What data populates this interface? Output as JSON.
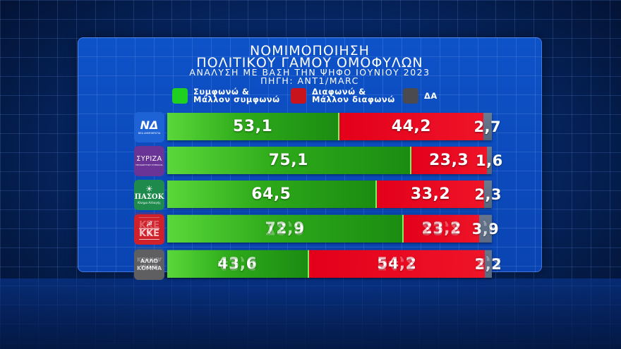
{
  "header": {
    "title_line1": "ΝΟΜΙΜΟΠΟΙΗΣΗ",
    "title_line2": "ΠΟΛΙΤΙΚΟΥ ΓΑΜΟΥ ΟΜΟΦΥΛΩΝ",
    "subtitle": "ΑΝΑΛΥΣΗ ΜΕ ΒΑΣΗ ΤΗΝ ΨΗΦΟ ΙΟΥΝΙΟΥ 2023",
    "source": "ΠΗΓΗ: ΑΝΤ1/MARC"
  },
  "legend": [
    {
      "line1": "Συμφωνώ &",
      "line2": "Μάλλον συμφωνώ",
      "color": "#1fd020"
    },
    {
      "line1": "Διαφωνώ &",
      "line2": "Μάλλον διαφωνώ",
      "color": "#c8141c"
    },
    {
      "line1": "ΔΑ",
      "line2": "",
      "color": "#4a4a4f"
    }
  ],
  "rows": [
    {
      "party": "ΝΔ",
      "logo_text": "ΝΔ",
      "logo_sub": "ΝΕΑ ΔΗΜΟΚΡΑΤΙΑ",
      "logo_color": "#1e63d6",
      "agree": "53,1",
      "disagree": "44,2",
      "na": "2,7"
    },
    {
      "party": "ΣΥΡΙΖΑ",
      "logo_text": "ΣΥΡΙΖΑ",
      "logo_sub": "ΠΡΟΟΔΕΥΤΙΚΗ ΣΥΜΜΑΧΙΑ",
      "logo_color": "#6a3396",
      "agree": "75,1",
      "disagree": "23,3",
      "na": "1,6"
    },
    {
      "party": "ΠΑΣΟΚ",
      "logo_text": "ΠΑΣΟΚ",
      "logo_sub": "Κίνημα Αλλαγής",
      "logo_color": "#1e8a4c",
      "agree": "64,5",
      "disagree": "33,2",
      "na": "2,3"
    },
    {
      "party": "ΚΚΕ",
      "logo_text": "ΚΚΕ",
      "logo_sub": "☭",
      "logo_color": "#d0202a",
      "agree": "72,9",
      "disagree": "23,2",
      "na": "3,9"
    },
    {
      "party": "ΑΛΛΟ ΚΟΜΜΑ",
      "logo_text": "ΑΛΛΟ",
      "logo_sub": "ΚΟΜΜΑ",
      "logo_color": "#5f5f62",
      "agree": "43,6",
      "disagree": "54,2",
      "na": "2,2"
    }
  ],
  "chart_data": {
    "type": "bar",
    "orientation": "horizontal-stacked",
    "title": "ΝΟΜΙΜΟΠΟΙΗΣΗ ΠΟΛΙΤΙΚΟΥ ΓΑΜΟΥ ΟΜΟΦΥΛΩΝ",
    "subtitle": "ΑΝΑΛΥΣΗ ΜΕ ΒΑΣΗ ΤΗΝ ΨΗΦΟ ΙΟΥΝΙΟΥ 2023",
    "source": "ΠΗΓΗ: ΑΝΤ1/MARC",
    "categories": [
      "ΝΔ",
      "ΣΥΡΙΖΑ",
      "ΠΑΣΟΚ",
      "ΚΚΕ",
      "ΑΛΛΟ ΚΟΜΜΑ"
    ],
    "series": [
      {
        "name": "Συμφωνώ & Μάλλον συμφωνώ",
        "color": "#2eaa1a",
        "values": [
          53.1,
          75.1,
          64.5,
          72.9,
          43.6
        ]
      },
      {
        "name": "Διαφωνώ & Μάλλον διαφωνώ",
        "color": "#e3001a",
        "values": [
          44.2,
          23.3,
          33.2,
          23.2,
          54.2
        ]
      },
      {
        "name": "ΔΑ",
        "color": "#5c6b80",
        "values": [
          2.7,
          1.6,
          2.3,
          3.9,
          2.2
        ]
      }
    ],
    "xlim": [
      0,
      100
    ],
    "grid": false,
    "legend_position": "top"
  }
}
